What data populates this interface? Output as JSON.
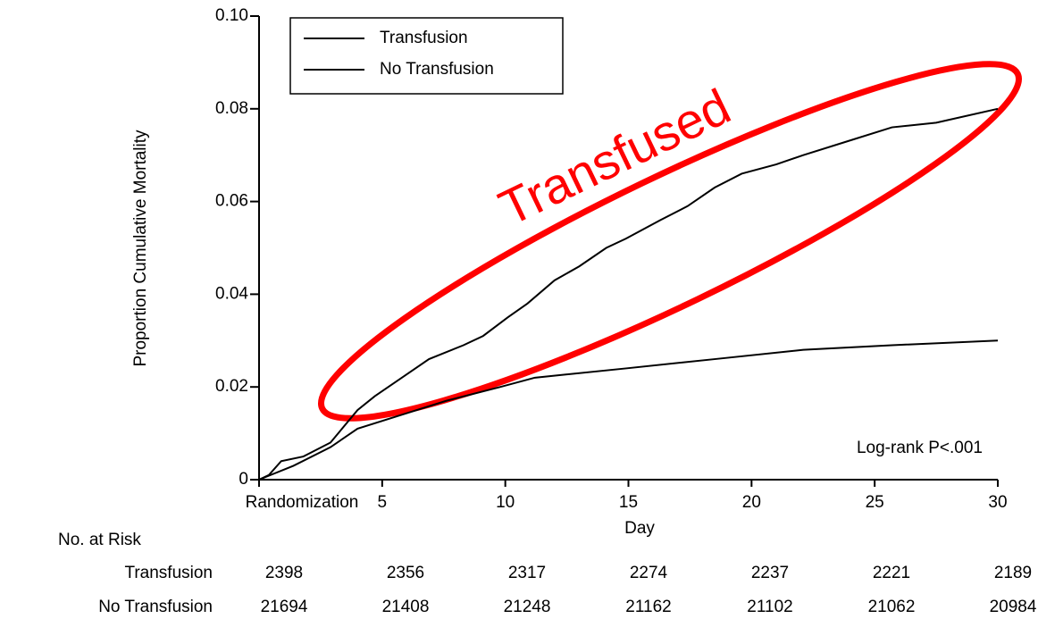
{
  "chart_data": {
    "type": "line",
    "y_label": "Proportion Cumulative Mortality",
    "x_label": "Day",
    "xlim": [
      0,
      30
    ],
    "ylim": [
      0,
      0.1
    ],
    "xticks": [
      {
        "value": 0,
        "label": "Randomization"
      },
      5,
      10,
      15,
      20,
      25,
      30
    ],
    "yticks": [
      0,
      0.02,
      0.04,
      0.06,
      0.08,
      {
        "value": 0.1,
        "label": "0.10"
      }
    ],
    "legend": "upper left",
    "series": [
      {
        "name": "Transfusion",
        "color": "#000000",
        "x": [
          0,
          0.4,
          0.9,
          1.8,
          2.9,
          4.0,
          4.7,
          5.8,
          6.9,
          8.3,
          9.1,
          10.1,
          10.9,
          12.0,
          13.0,
          14.1,
          14.9,
          16.3,
          17.4,
          18.5,
          19.6,
          21.0,
          22.1,
          23.9,
          25.7,
          27.5,
          30
        ],
        "values": [
          0,
          0.001,
          0.004,
          0.005,
          0.008,
          0.015,
          0.018,
          0.022,
          0.026,
          0.029,
          0.031,
          0.035,
          0.038,
          0.043,
          0.046,
          0.05,
          0.052,
          0.056,
          0.059,
          0.063,
          0.066,
          0.068,
          0.07,
          0.073,
          0.076,
          0.077,
          0.08
        ]
      },
      {
        "name": "No Transfusion",
        "color": "#000000",
        "x": [
          0,
          1.4,
          2.9,
          4.0,
          5.8,
          7.6,
          9.8,
          11.2,
          14.9,
          18.5,
          22.1,
          25.7,
          30
        ],
        "values": [
          0,
          0.003,
          0.007,
          0.011,
          0.014,
          0.017,
          0.02,
          0.022,
          0.024,
          0.026,
          0.028,
          0.029,
          0.03
        ]
      }
    ],
    "annotations": [
      "Log-rank P<.001",
      "Transfused"
    ],
    "risk_table": {
      "title": "No. at Risk",
      "rows": [
        {
          "name": "Transfusion",
          "values": [
            2398,
            2356,
            2317,
            2274,
            2237,
            2221,
            2189
          ]
        },
        {
          "name": "No Transfusion",
          "values": [
            21694,
            21408,
            21248,
            21162,
            21102,
            21062,
            20984
          ]
        }
      ]
    }
  }
}
